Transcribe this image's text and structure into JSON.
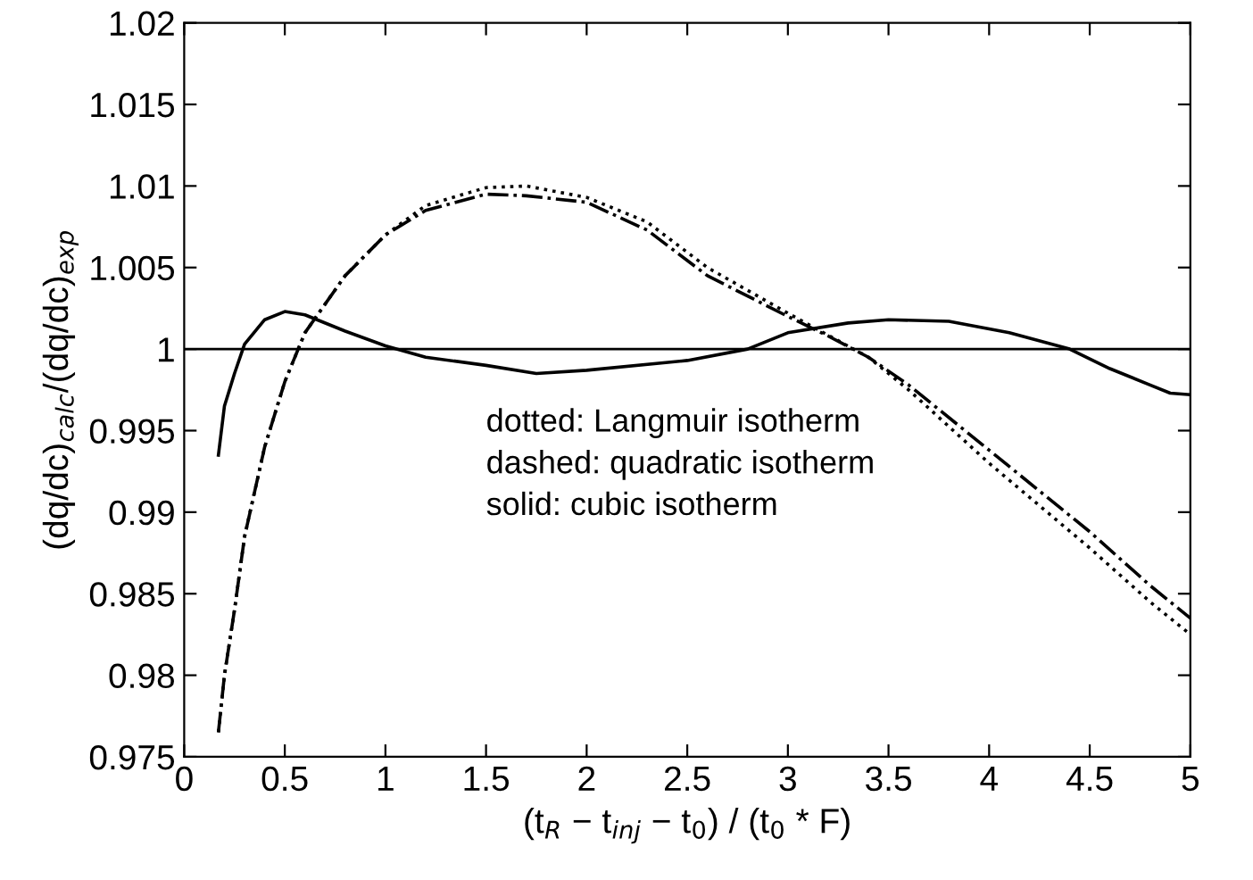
{
  "chart_data": {
    "type": "line",
    "xlabel": "(t$_{R}$ − t$_{inj}$ − t$_{0}$) / (t$_{0}$ * F)",
    "ylabel": "(dq/dc)$_{calc}$/(dq/dc)$_{exp}$",
    "xlim": [
      0,
      5
    ],
    "ylim": [
      0.975,
      1.02
    ],
    "xticks": [
      0,
      0.5,
      1,
      1.5,
      2,
      2.5,
      3,
      3.5,
      4,
      4.5,
      5
    ],
    "yticks": [
      0.975,
      0.98,
      0.985,
      0.99,
      0.995,
      1,
      1.005,
      1.01,
      1.015,
      1.02
    ],
    "grid": false,
    "legend": false,
    "ref_lines": [
      {
        "axis": "y",
        "value": 1,
        "color": "#000000",
        "line_style": "solid"
      }
    ],
    "annotations": [
      "dotted: Langmuir isotherm\ndashed: quadratic isotherm\nsolid: cubic isotherm"
    ],
    "series": [
      {
        "color": "#000000",
        "line_style": "dotted",
        "x": [
          0.17,
          0.2,
          0.25,
          0.3,
          0.4,
          0.5,
          0.6,
          0.8,
          1.0,
          1.2,
          1.5,
          1.7,
          2.0,
          2.3,
          2.6,
          3.0,
          3.4,
          3.6,
          4.0,
          4.5,
          4.8,
          5.0
        ],
        "values": [
          0.9765,
          0.98,
          0.984,
          0.9885,
          0.994,
          0.998,
          1.001,
          1.0045,
          1.007,
          1.0088,
          1.0099,
          1.01,
          1.0093,
          1.0078,
          1.005,
          1.0022,
          0.9995,
          0.9975,
          0.993,
          0.9878,
          0.9845,
          0.9825
        ]
      },
      {
        "color": "#000000",
        "line_style": "dashed",
        "x": [
          0.17,
          0.2,
          0.25,
          0.3,
          0.4,
          0.5,
          0.6,
          0.8,
          1.0,
          1.2,
          1.5,
          1.7,
          2.0,
          2.3,
          2.6,
          3.0,
          3.2,
          3.4,
          3.6,
          4.0,
          4.5,
          4.8,
          5.0
        ],
        "values": [
          0.9765,
          0.98,
          0.984,
          0.9885,
          0.994,
          0.998,
          1.001,
          1.0045,
          1.007,
          1.0085,
          1.0095,
          1.0094,
          1.009,
          1.0073,
          1.0045,
          1.002,
          1.0008,
          0.9995,
          0.9978,
          0.9938,
          0.9888,
          0.9855,
          0.9835
        ]
      },
      {
        "color": "#000000",
        "line_style": "solid",
        "x": [
          0.17,
          0.2,
          0.25,
          0.3,
          0.4,
          0.5,
          0.6,
          0.8,
          1.0,
          1.2,
          1.5,
          1.75,
          2.0,
          2.5,
          2.8,
          3.0,
          3.3,
          3.5,
          3.8,
          4.1,
          4.4,
          4.6,
          4.8,
          4.9,
          5.0
        ],
        "values": [
          0.9935,
          0.9965,
          0.9985,
          1.0003,
          1.0018,
          1.0023,
          1.0021,
          1.0011,
          1.0002,
          0.9995,
          0.999,
          0.9985,
          0.9987,
          0.9993,
          1.0,
          1.001,
          1.0016,
          1.0018,
          1.0017,
          1.001,
          1.0,
          0.9988,
          0.9978,
          0.9973,
          0.9972
        ]
      }
    ]
  }
}
